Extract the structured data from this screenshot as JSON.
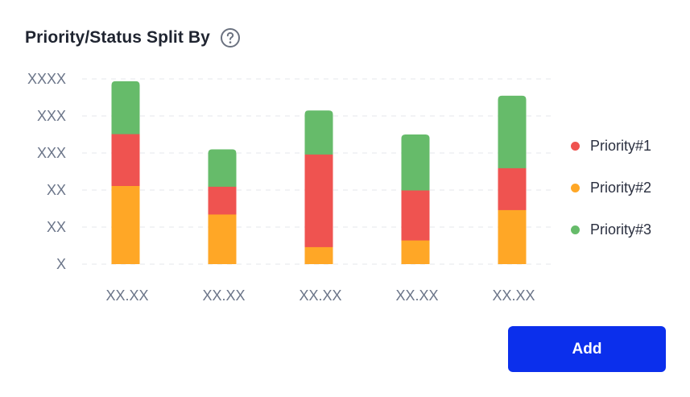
{
  "header": {
    "title": "Priority/Status Split By"
  },
  "icons": {
    "help": "question-circle-icon"
  },
  "colors": {
    "priority1": "#ef5350",
    "priority2": "#ffa726",
    "priority3": "#66bb6a",
    "grid": "#e5e7eb",
    "tick_text": "#6b7589",
    "button": "#0b2fec"
  },
  "chart_data": {
    "type": "bar",
    "stacked": true,
    "title": "Priority/Status Split By",
    "xlabel": "",
    "ylabel": "",
    "categories": [
      "XX.XX",
      "XX.XX",
      "XX.XX",
      "XX.XX",
      "XX.XX"
    ],
    "y_tick_labels": [
      "X",
      "XX",
      "XX",
      "XXX",
      "XXX",
      "XXXX"
    ],
    "ylim": [
      0,
      5
    ],
    "grid": true,
    "legend_position": "right",
    "series": [
      {
        "name": "Priority#2",
        "color": "#ffa726",
        "values": [
          2.12,
          1.35,
          0.47,
          0.65,
          1.47
        ]
      },
      {
        "name": "Priority#1",
        "color": "#ef5350",
        "values": [
          1.4,
          0.75,
          2.5,
          1.35,
          1.13
        ]
      },
      {
        "name": "Priority#3",
        "color": "#66bb6a",
        "values": [
          1.42,
          1.0,
          1.18,
          1.5,
          1.95
        ]
      }
    ]
  },
  "legend": {
    "items": [
      {
        "label": "Priority#1",
        "color": "#ef5350"
      },
      {
        "label": "Priority#2",
        "color": "#ffa726"
      },
      {
        "label": "Priority#3",
        "color": "#66bb6a"
      }
    ]
  },
  "actions": {
    "add_label": "Add"
  }
}
